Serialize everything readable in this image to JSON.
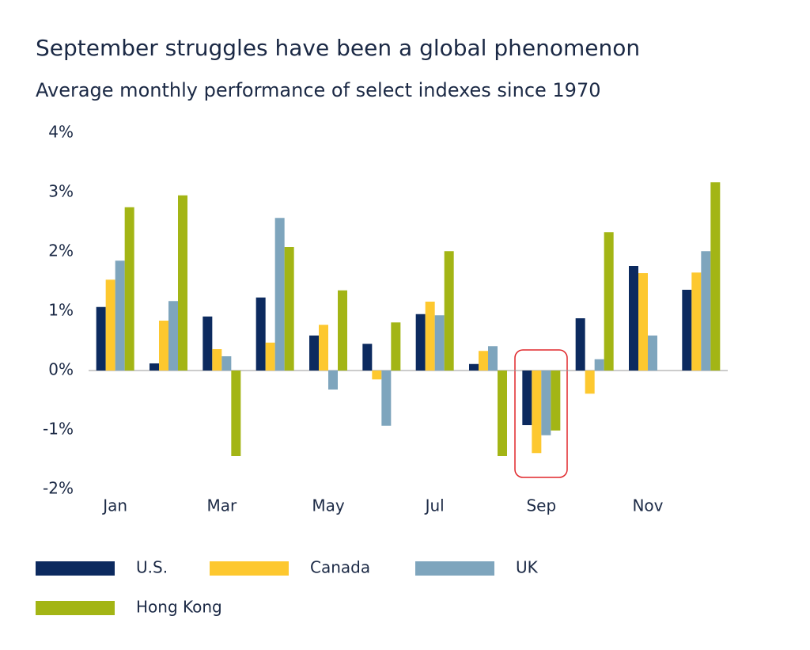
{
  "chart_data": {
    "type": "bar",
    "title": "September struggles have been a global phenomenon",
    "subtitle": "Average monthly performance of select indexes since 1970",
    "categories": [
      "Jan",
      null,
      "Mar",
      null,
      "May",
      null,
      "Jul",
      null,
      "Sep",
      null,
      "Nov",
      null
    ],
    "series": [
      {
        "name": "U.S.",
        "color": "#0c2a5f",
        "values": [
          1.07,
          0.12,
          0.91,
          1.23,
          0.59,
          0.45,
          0.95,
          0.11,
          -0.92,
          0.88,
          1.76,
          1.36
        ]
      },
      {
        "name": "Canada",
        "color": "#fdc82f",
        "values": [
          1.53,
          0.84,
          0.36,
          0.47,
          0.77,
          -0.15,
          1.16,
          0.33,
          -1.39,
          -0.39,
          1.64,
          1.65
        ]
      },
      {
        "name": "UK",
        "color": "#7ea5bd",
        "values": [
          1.85,
          1.17,
          0.24,
          2.57,
          -0.32,
          -0.93,
          0.93,
          0.41,
          -1.09,
          0.19,
          0.59,
          2.01
        ]
      },
      {
        "name": "Hong Kong",
        "color": "#a3b515",
        "values": [
          2.75,
          2.95,
          -1.44,
          2.08,
          1.35,
          0.81,
          2.01,
          -1.44,
          -1.01,
          2.33,
          null,
          3.17
        ]
      }
    ],
    "ylim": [
      -2,
      4
    ],
    "yticks": [
      {
        "value": -2,
        "label": "-2%"
      },
      {
        "value": -1,
        "label": "-1%"
      },
      {
        "value": 0,
        "label": "0%"
      },
      {
        "value": 1,
        "label": "1%"
      },
      {
        "value": 2,
        "label": "2%"
      },
      {
        "value": 3,
        "label": "3%"
      },
      {
        "value": 4,
        "label": "4%"
      }
    ],
    "grid": false
  }
}
